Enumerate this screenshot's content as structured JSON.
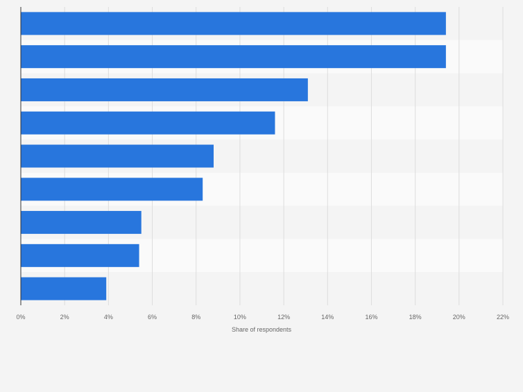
{
  "colors": {
    "background": "#f4f4f4",
    "band_dark": "#f4f4f4",
    "band_light": "#fafafa",
    "bar": "#2876dd",
    "grid": "#dddddd",
    "axis": "#333333",
    "tick_text": "#666666"
  },
  "chart_data": {
    "type": "bar",
    "orientation": "horizontal",
    "title": "",
    "categories": [
      "",
      "",
      "",
      "",
      "",
      "",
      "",
      "",
      ""
    ],
    "values": [
      19.4,
      19.4,
      13.1,
      11.6,
      8.8,
      8.3,
      5.5,
      5.4,
      3.9
    ],
    "xlabel": "Share of respondents",
    "ylabel": "",
    "xlim": [
      0,
      22
    ],
    "xticks": [
      "0%",
      "2%",
      "4%",
      "6%",
      "8%",
      "10%",
      "12%",
      "14%",
      "16%",
      "18%",
      "20%",
      "22%"
    ],
    "grid": true,
    "legend": "none"
  }
}
